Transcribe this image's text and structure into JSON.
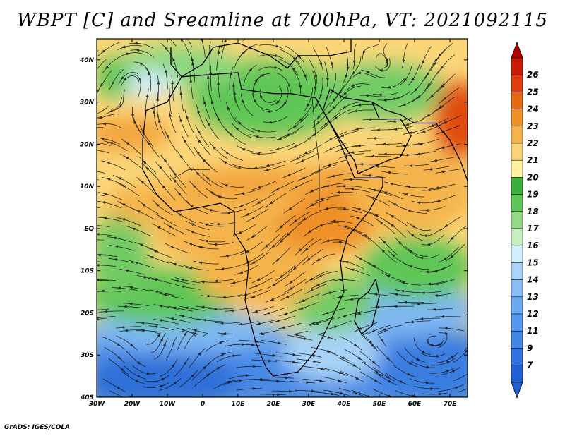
{
  "title": "WBPT [C] and Sreamline at 700hPa, VT: 2021092115",
  "credit": "GrADS: IGES/COLA",
  "map": {
    "lon_range": [
      -30,
      75
    ],
    "lat_range": [
      -40,
      45
    ],
    "lon_ticks": [
      {
        "value": -30,
        "label": "30W"
      },
      {
        "value": -20,
        "label": "20W"
      },
      {
        "value": -10,
        "label": "10W"
      },
      {
        "value": 0,
        "label": "0"
      },
      {
        "value": 10,
        "label": "10E"
      },
      {
        "value": 20,
        "label": "20E"
      },
      {
        "value": 30,
        "label": "30E"
      },
      {
        "value": 40,
        "label": "40E"
      },
      {
        "value": 50,
        "label": "50E"
      },
      {
        "value": 60,
        "label": "60E"
      },
      {
        "value": 70,
        "label": "70E"
      }
    ],
    "lat_ticks": [
      {
        "value": 40,
        "label": "40N"
      },
      {
        "value": 30,
        "label": "30N"
      },
      {
        "value": 20,
        "label": "20N"
      },
      {
        "value": 10,
        "label": "10N"
      },
      {
        "value": 0,
        "label": "EQ"
      },
      {
        "value": -10,
        "label": "10S"
      },
      {
        "value": -20,
        "label": "20S"
      },
      {
        "value": -30,
        "label": "30S"
      },
      {
        "value": -40,
        "label": "40S"
      }
    ]
  },
  "colorbar": {
    "labels": [
      "7",
      "9",
      "11",
      "12",
      "13",
      "14",
      "15",
      "16",
      "17",
      "18",
      "19",
      "20",
      "21",
      "22",
      "23",
      "24",
      "25",
      "26"
    ],
    "colors": [
      "#1f5fd6",
      "#2f73e0",
      "#4185e6",
      "#5496ec",
      "#6aa9f0",
      "#88bff4",
      "#aad4f8",
      "#d6efff",
      "#c6eec0",
      "#96da88",
      "#5ec656",
      "#3aae3a",
      "#fff2a0",
      "#fbd679",
      "#f5b34c",
      "#ee9028",
      "#e66a14",
      "#dc3f0c",
      "#c81b05"
    ],
    "tri_bottom_color": "#1f5fd6",
    "tri_top_color": "#b00000"
  }
}
